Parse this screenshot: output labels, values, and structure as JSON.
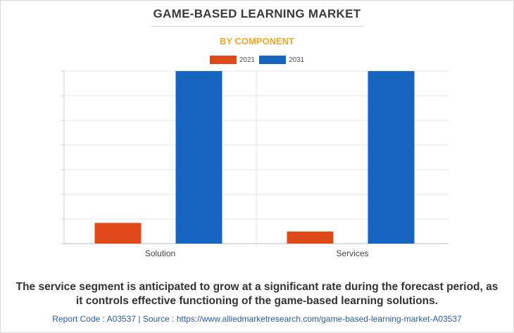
{
  "header": {
    "title": "GAME-BASED LEARNING MARKET",
    "subtitle": "BY COMPONENT"
  },
  "chart_data": {
    "type": "bar",
    "categories": [
      "Solution",
      "Services"
    ],
    "series": [
      {
        "name": "2021",
        "color": "#e04a1b",
        "values": [
          0.12,
          0.07
        ]
      },
      {
        "name": "2031",
        "color": "#1565c0",
        "values": [
          1.0,
          1.0
        ]
      }
    ],
    "ylim": [
      0,
      1.0
    ],
    "grid": true,
    "legend": "top-center"
  },
  "footer": {
    "caption_line1": "The service segment is anticipated to grow at a significant rate during the forecast period, as",
    "caption_line2": "it controls effective functioning of the game-based learning solutions.",
    "source": "Report Code : A03537  |  Source : https://www.alliedmarketresearch.com/game-based-learning-market-A03537"
  }
}
